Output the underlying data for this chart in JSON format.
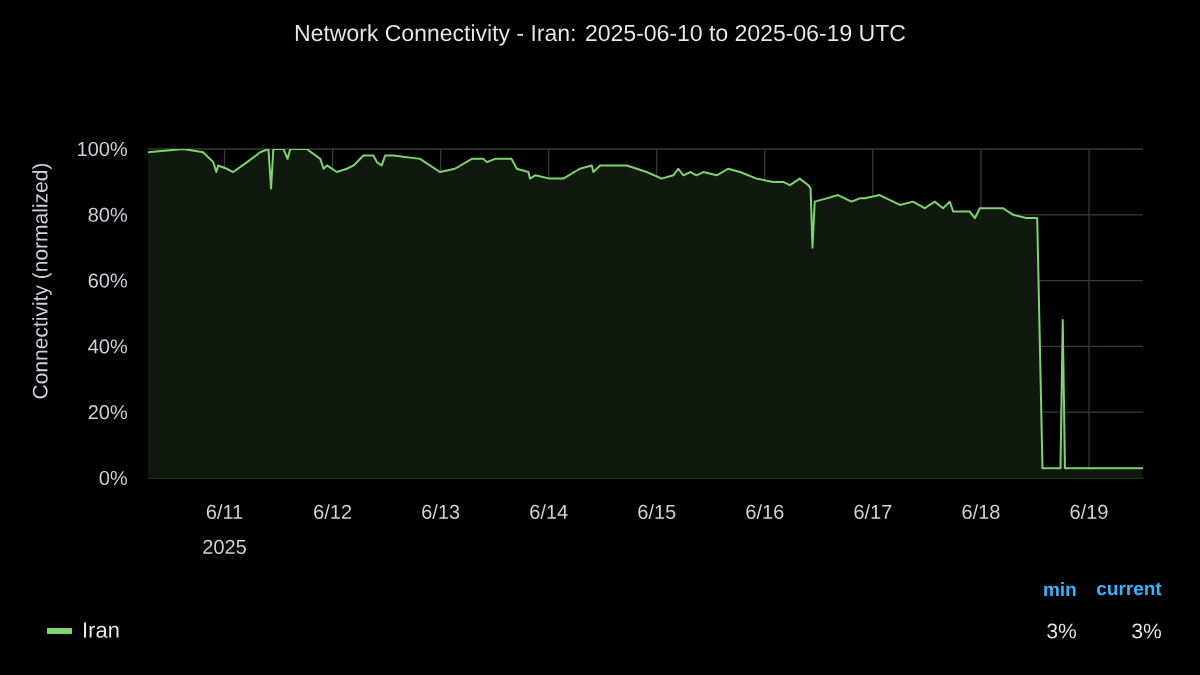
{
  "chart_data": {
    "type": "area",
    "title": "Network Connectivity - Iran: 2025-06-10 to 2025-06-19 UTC",
    "ylabel": "Connectivity (normalized)",
    "x": [
      "2025-06-10T07:00",
      "2025-06-10T14:50",
      "2025-06-10T19:15",
      "2025-06-10T21:30",
      "2025-06-10T22:10",
      "2025-06-10T22:35",
      "2025-06-11T00:30",
      "2025-06-11T01:55",
      "2025-06-11T05:00",
      "2025-06-11T07:55",
      "2025-06-11T09:45",
      "2025-06-11T10:20",
      "2025-06-11T10:50",
      "2025-06-11T13:05",
      "2025-06-11T14:00",
      "2025-06-11T14:35",
      "2025-06-11T18:15",
      "2025-06-11T21:15",
      "2025-06-11T22:00",
      "2025-06-11T22:45",
      "2025-06-12T00:55",
      "2025-06-12T03:10",
      "2025-06-12T04:40",
      "2025-06-12T06:50",
      "2025-06-12T09:05",
      "2025-06-12T09:50",
      "2025-06-12T10:55",
      "2025-06-12T11:40",
      "2025-06-12T13:30",
      "2025-06-12T19:25",
      "2025-06-12T23:50",
      "2025-06-13T03:10",
      "2025-06-13T06:55",
      "2025-06-13T09:30",
      "2025-06-13T10:15",
      "2025-06-13T12:05",
      "2025-06-13T15:45",
      "2025-06-13T16:55",
      "2025-06-13T19:30",
      "2025-06-13T19:50",
      "2025-06-13T21:00",
      "2025-06-14T00:15",
      "2025-06-14T03:15",
      "2025-06-14T06:55",
      "2025-06-14T09:35",
      "2025-06-14T09:55",
      "2025-06-14T11:25",
      "2025-06-14T17:20",
      "2025-06-14T21:45",
      "2025-06-15T01:05",
      "2025-06-15T03:40",
      "2025-06-15T04:45",
      "2025-06-15T05:55",
      "2025-06-15T07:30",
      "2025-06-15T08:50",
      "2025-06-15T10:20",
      "2025-06-15T13:20",
      "2025-06-15T15:50",
      "2025-06-15T18:30",
      "2025-06-15T22:10",
      "2025-06-16T01:50",
      "2025-06-16T04:05",
      "2025-06-16T05:35",
      "2025-06-16T07:45",
      "2025-06-16T09:40",
      "2025-06-16T10:10",
      "2025-06-16T10:35",
      "2025-06-16T11:05",
      "2025-06-16T13:45",
      "2025-06-16T16:15",
      "2025-06-16T19:15",
      "2025-06-16T21:05",
      "2025-06-16T22:15",
      "2025-06-17T01:30",
      "2025-06-17T06:00",
      "2025-06-17T08:55",
      "2025-06-17T11:30",
      "2025-06-17T13:45",
      "2025-06-17T15:35",
      "2025-06-17T17:05",
      "2025-06-17T17:50",
      "2025-06-17T21:30",
      "2025-06-17T22:40",
      "2025-06-17T23:45",
      "2025-06-18T02:40",
      "2025-06-18T04:55",
      "2025-06-18T07:10",
      "2025-06-18T10:05",
      "2025-06-18T11:55",
      "2025-06-18T12:30",
      "2025-06-18T13:40",
      "2025-06-18T17:05",
      "2025-06-18T17:40",
      "2025-06-18T18:10",
      "2025-06-18T18:40",
      "2025-06-18T20:50",
      "2025-06-19T05:20",
      "2025-06-19T11:50"
    ],
    "series": [
      {
        "name": "Iran",
        "color": "#7fd36f",
        "values": [
          99,
          100,
          99,
          96,
          93,
          95,
          94,
          93,
          96,
          99,
          100,
          88,
          100,
          100,
          97,
          100,
          100,
          97,
          94,
          95,
          93,
          94,
          95,
          98,
          98,
          96,
          95,
          98,
          98,
          97,
          93,
          94,
          97,
          97,
          96,
          97,
          97,
          94,
          93,
          91,
          92,
          91,
          91,
          94,
          95,
          93,
          95,
          95,
          93,
          91,
          92,
          94,
          92,
          93,
          92,
          93,
          92,
          94,
          93,
          91,
          90,
          90,
          89,
          91,
          89,
          88,
          70,
          84,
          85,
          86,
          84,
          85,
          85,
          86,
          83,
          84,
          82,
          84,
          82,
          84,
          81,
          81,
          79,
          82,
          82,
          82,
          80,
          79,
          79,
          79,
          3,
          3,
          3,
          48,
          3,
          3,
          3,
          3
        ]
      }
    ],
    "xlim": [
      "2025-06-10T07:00",
      "2025-06-19T12:00"
    ],
    "xticks": [
      {
        "value": "2025-06-11",
        "label": "6/11 2025"
      },
      {
        "value": "2025-06-12",
        "label": "6/12"
      },
      {
        "value": "2025-06-13",
        "label": "6/13"
      },
      {
        "value": "2025-06-14",
        "label": "6/14"
      },
      {
        "value": "2025-06-15",
        "label": "6/15"
      },
      {
        "value": "2025-06-16",
        "label": "6/16"
      },
      {
        "value": "2025-06-17",
        "label": "6/17"
      },
      {
        "value": "2025-06-18",
        "label": "6/18"
      },
      {
        "value": "2025-06-19",
        "label": "6/19"
      }
    ],
    "ylim": [
      0,
      100
    ],
    "yticks": [
      {
        "value": 0,
        "label": "0%"
      },
      {
        "value": 20,
        "label": "20%"
      },
      {
        "value": 40,
        "label": "40%"
      },
      {
        "value": 60,
        "label": "60%"
      },
      {
        "value": 80,
        "label": "80%"
      },
      {
        "value": 100,
        "label": "100%"
      }
    ],
    "grid": true,
    "legend": "bottom left",
    "annotations": [
      "min",
      "current",
      "3%",
      "3%"
    ]
  }
}
